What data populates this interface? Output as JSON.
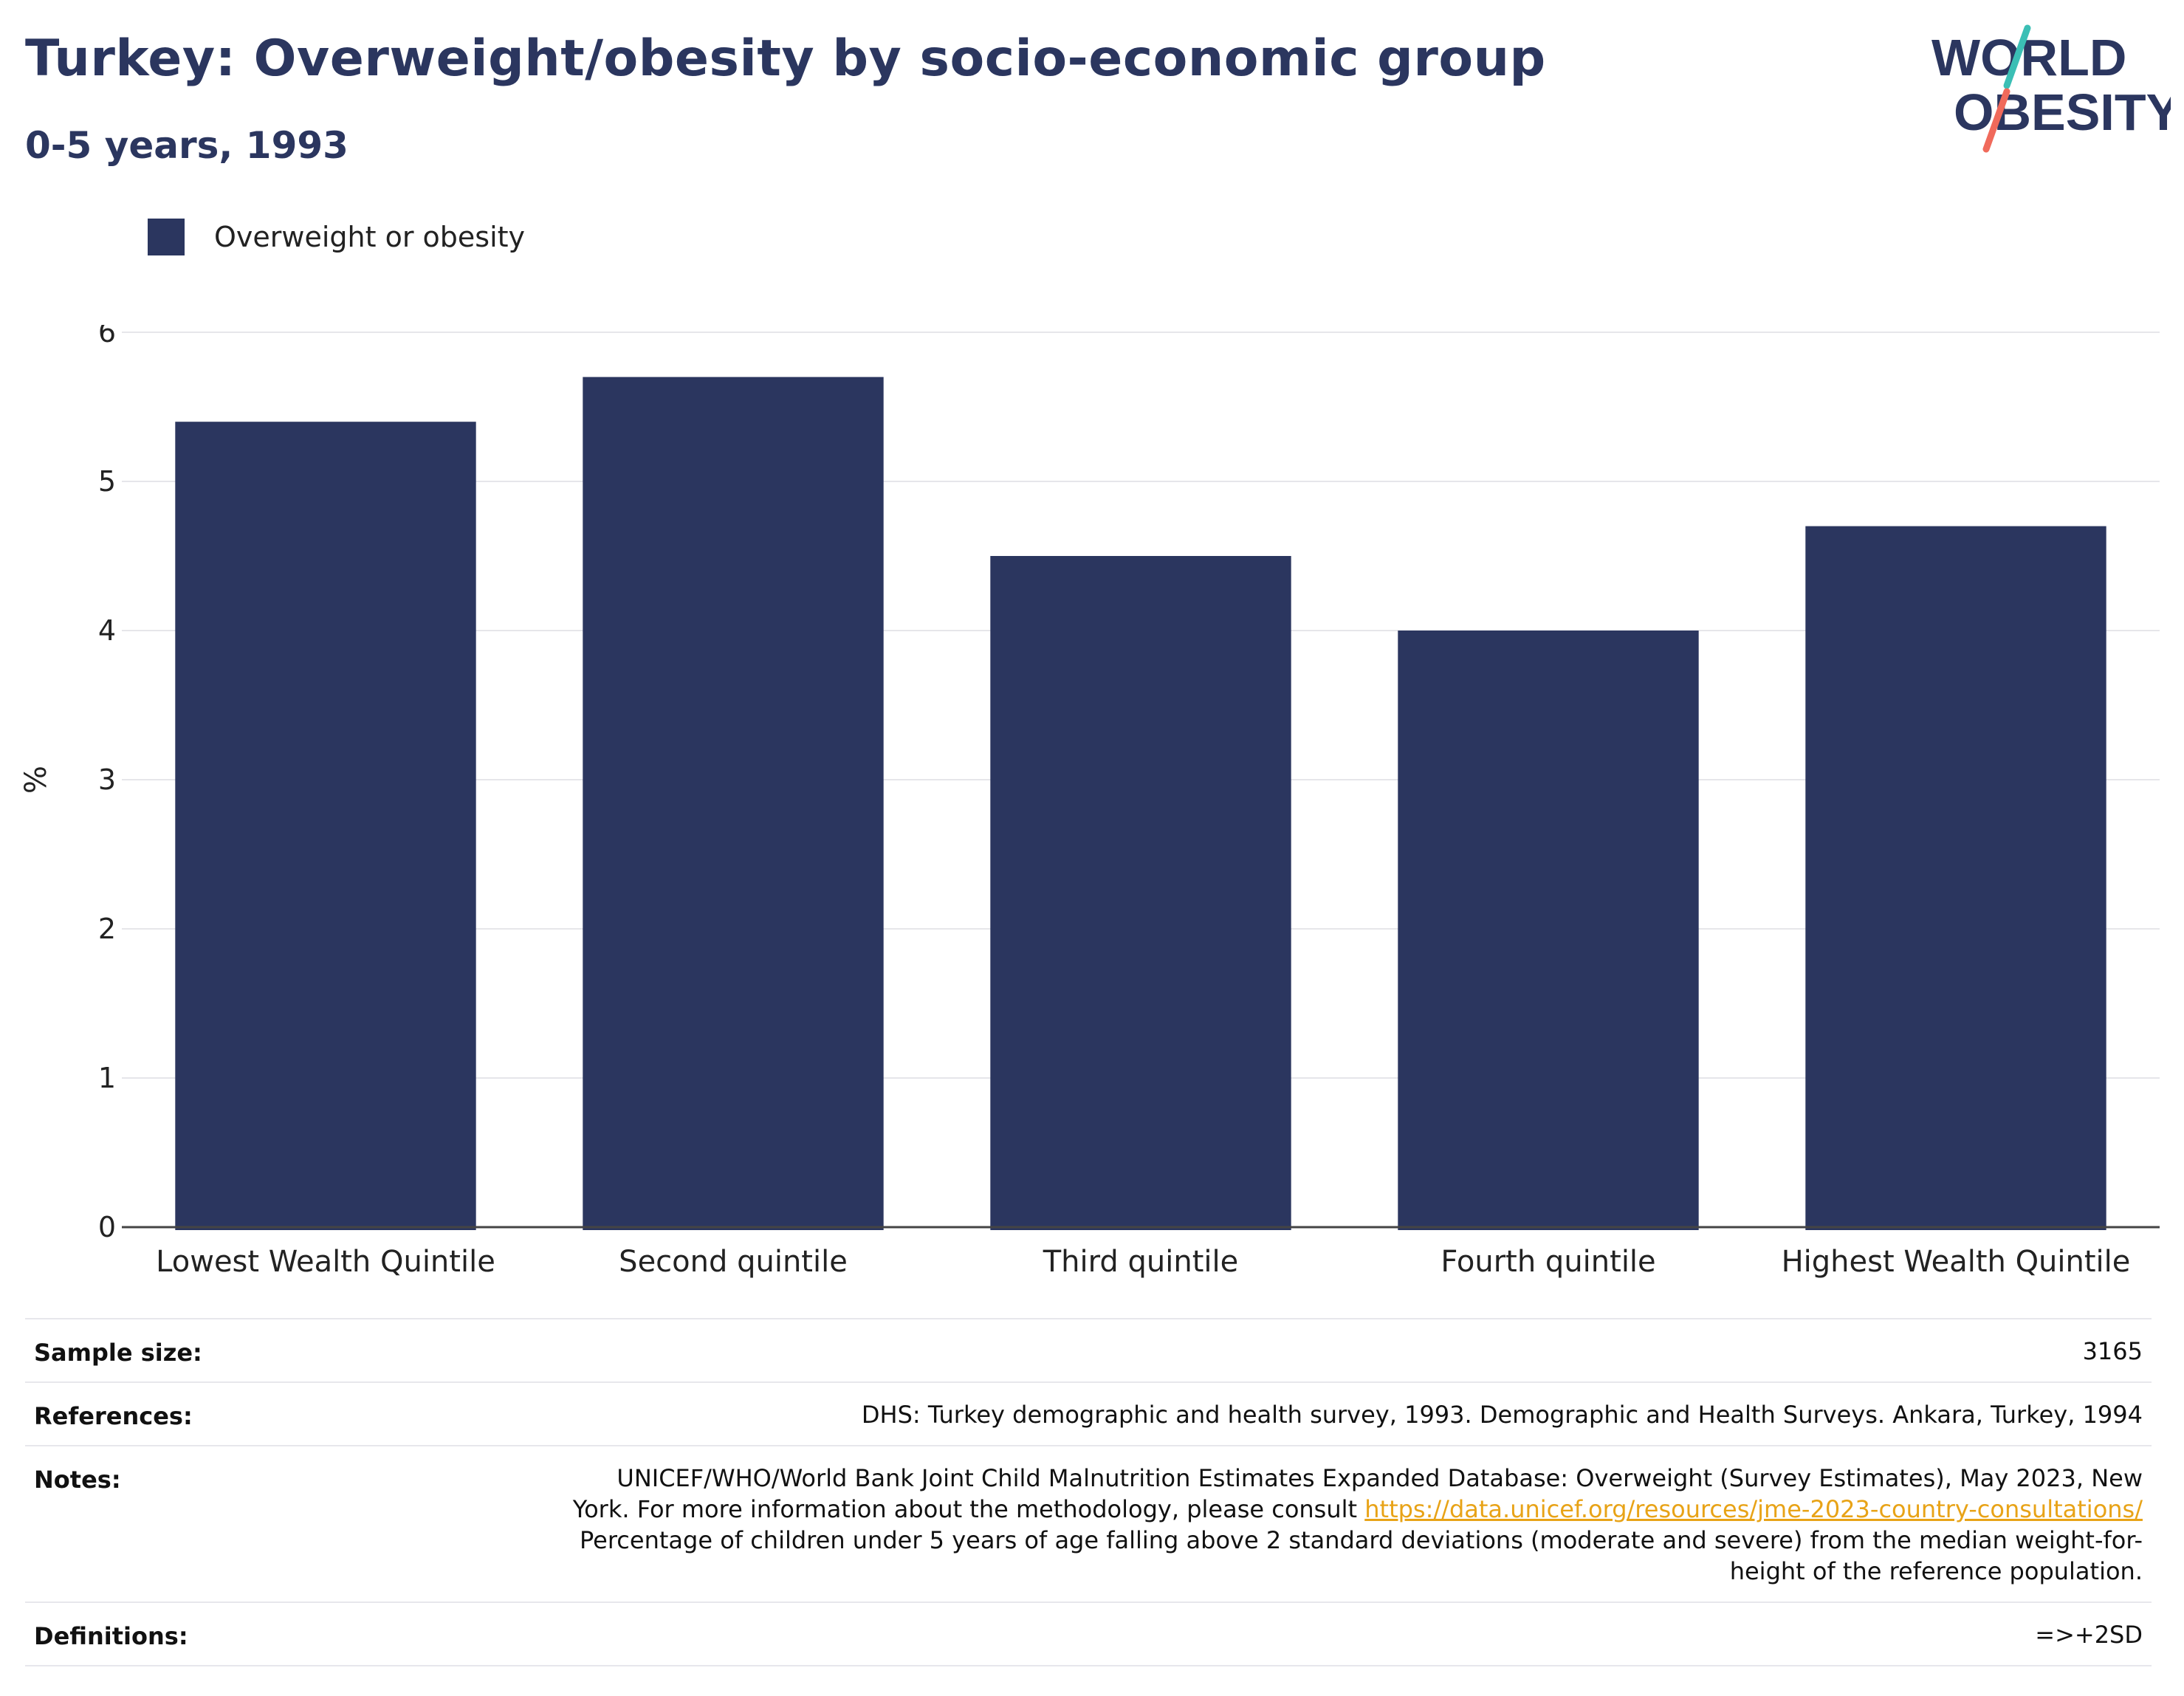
{
  "header": {
    "title": "Turkey: Overweight/obesity by socio-economic group",
    "subtitle": "0-5 years, 1993"
  },
  "logo": {
    "line1": "WORLD",
    "line2": "OBESITY",
    "accent_colors": [
      "#3bbfb5",
      "#f06a5b"
    ]
  },
  "legend": {
    "label": "Overweight or obesity",
    "color": "#2b365f"
  },
  "chart_data": {
    "type": "bar",
    "title": "Turkey: Overweight/obesity by socio-economic group",
    "subtitle": "0-5 years, 1993",
    "categories": [
      "Lowest Wealth Quintile",
      "Second quintile",
      "Third quintile",
      "Fourth quintile",
      "Highest Wealth Quintile"
    ],
    "series": [
      {
        "name": "Overweight or obesity",
        "values": [
          5.4,
          5.7,
          4.5,
          4.0,
          4.7
        ],
        "color": "#2b365f"
      }
    ],
    "xlabel": "",
    "ylabel": "%",
    "ylim": [
      0,
      6
    ],
    "yticks": [
      0,
      1,
      2,
      3,
      4,
      5,
      6
    ],
    "grid": true,
    "legend_position": "top-left"
  },
  "info": {
    "sample_size_label": "Sample size:",
    "sample_size_value": "3165",
    "references_label": "References:",
    "references_value": "DHS: Turkey demographic and health survey, 1993. Demographic and Health Surveys. Ankara, Turkey, 1994",
    "notes_label": "Notes:",
    "notes_line1": "UNICEF/WHO/World Bank Joint Child Malnutrition Estimates Expanded Database: Overweight (Survey Estimates), May 2023, New",
    "notes_line2_prefix": "York. For more information about the methodology, please consult ",
    "notes_link": "https://data.unicef.org/resources/jme-2023-country-consultations/",
    "notes_line3": "Percentage of children under 5 years of age falling above 2 standard deviations (moderate and severe) from the median weight-for-",
    "notes_line4": "height of the reference population.",
    "definitions_label": "Definitions:",
    "definitions_value": "=>+2SD"
  }
}
